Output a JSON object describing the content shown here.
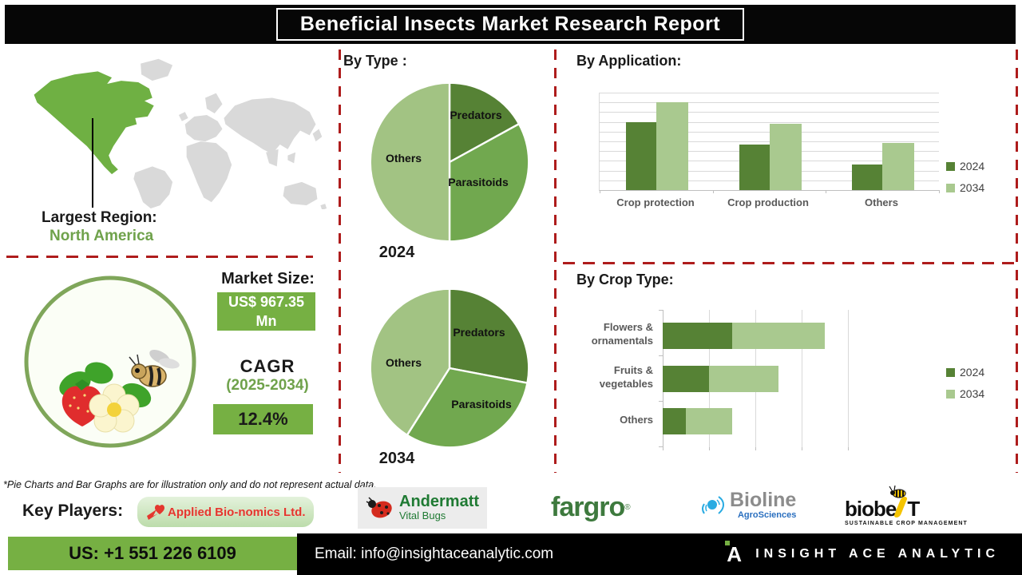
{
  "title": "Beneficial Insects Market Research Report",
  "left_panel": {
    "largest_region_label": "Largest Region:",
    "largest_region_value": "North America",
    "highlighted_region": "North America",
    "market_size_label": "Market Size:",
    "market_size_value": "US$ 967.35 Mn",
    "cagr_label": "CAGR",
    "cagr_period": "(2025-2034)",
    "cagr_value": "12.4%"
  },
  "colors": {
    "dark_green": "#568235",
    "medium_green": "#71A84F",
    "light_green": "#A2C383",
    "bar_light_green": "#A9C98F",
    "brand_green": "#76B043",
    "text_green": "#6FA24B",
    "dashed_red": "#AE1C1C",
    "map_gray": "#D9D9D9"
  },
  "chart_data": [
    {
      "type": "pie",
      "section_title": "By Type :",
      "year_label": "2024",
      "labels": [
        "Predators",
        "Parasitoids",
        "Others"
      ],
      "values": [
        17,
        33,
        50
      ],
      "colors": [
        "#568235",
        "#71A84F",
        "#A2C383"
      ]
    },
    {
      "type": "pie",
      "year_label": "2034",
      "labels": [
        "Predators",
        "Parasitoids",
        "Others"
      ],
      "values": [
        28,
        31,
        41
      ],
      "colors": [
        "#568235",
        "#71A84F",
        "#A2C383"
      ]
    },
    {
      "type": "bar",
      "title": "By Application:",
      "categories": [
        "Crop protection",
        "Crop production",
        "Others"
      ],
      "series": [
        {
          "name": "2024",
          "color": "#568235",
          "values": [
            70,
            47,
            26
          ]
        },
        {
          "name": "2034",
          "color": "#A9C98F",
          "values": [
            90,
            68,
            48
          ]
        }
      ],
      "ylim": [
        0,
        100
      ],
      "grid": "horizontal",
      "legend_position": "right"
    },
    {
      "type": "bar-horizontal-stacked",
      "title": "By Crop Type:",
      "categories": [
        "Flowers & ornamentals",
        "Fruits & vegetables",
        "Others"
      ],
      "series": [
        {
          "name": "2024",
          "color": "#568235",
          "values": [
            30,
            20,
            10
          ]
        },
        {
          "name": "2034",
          "color": "#A9C98F",
          "values": [
            40,
            30,
            20
          ]
        }
      ],
      "xlim": [
        0,
        80
      ],
      "grid": "vertical",
      "legend_position": "right"
    }
  ],
  "disclaimer": "*Pie Charts and Bar Graphs are for illustration only and do not represent actual data.",
  "key_players": {
    "label": "Key Players:",
    "logos": [
      {
        "name": "Applied Bio-nomics Ltd."
      },
      {
        "name": "Andermatt",
        "subtitle": "Vital Bugs"
      },
      {
        "name": "fargro",
        "reg_mark": "®"
      },
      {
        "name": "Bioline",
        "subtitle": "AgroSciences"
      },
      {
        "name": "biobest",
        "display_parts": [
          "biobe",
          "T"
        ],
        "subtitle": "SUSTAINABLE CROP MANAGEMENT"
      }
    ]
  },
  "footer": {
    "phone": "US: +1 551 226 6109",
    "email": "Email: info@insightaceanalytic.com",
    "brand": "INSIGHT ACE ANALYTIC"
  }
}
